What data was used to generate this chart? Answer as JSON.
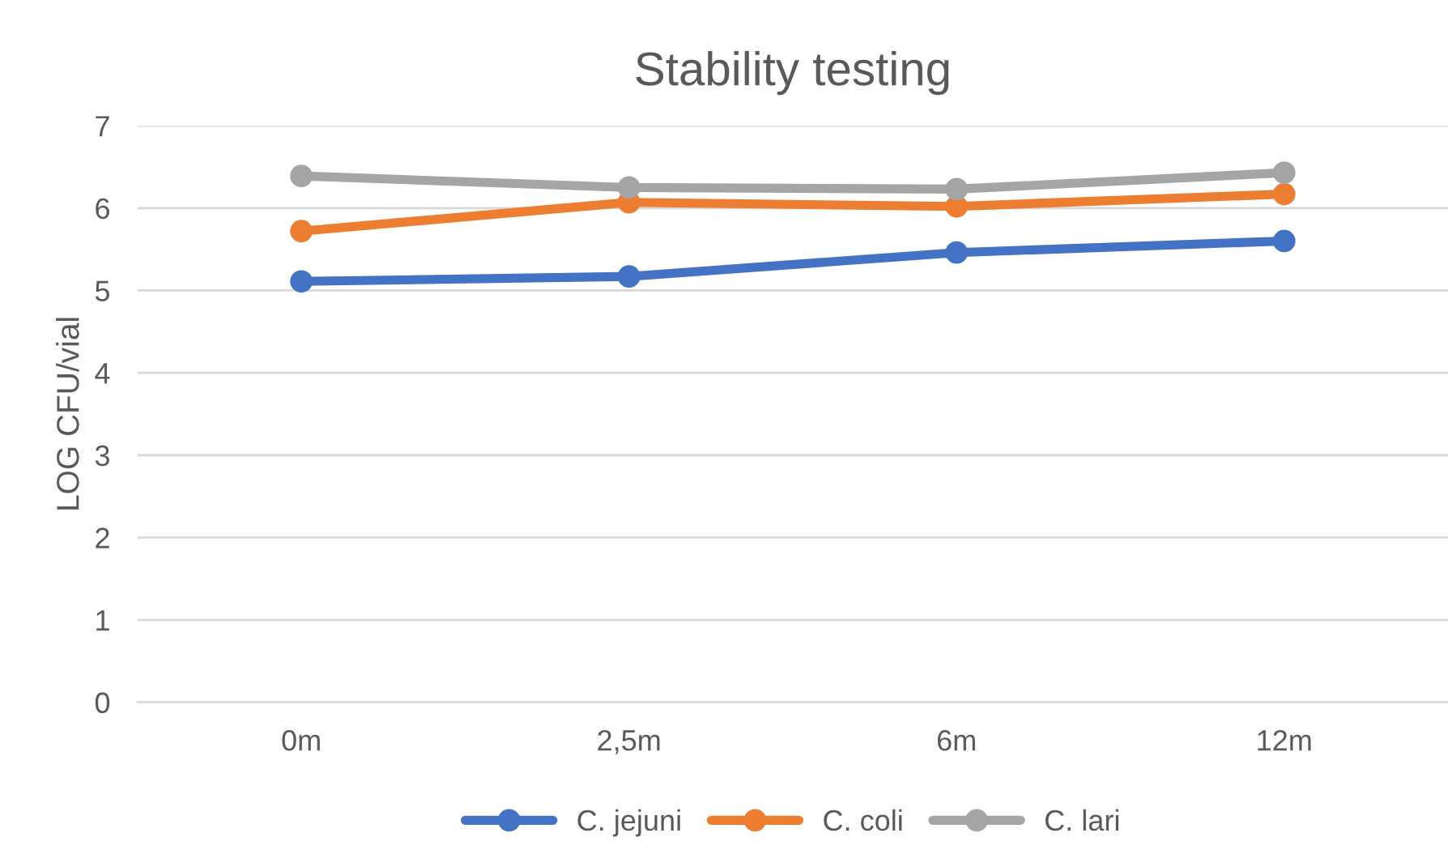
{
  "chart_data": {
    "type": "line",
    "title": "Stability testing",
    "ylabel": "LOG CFU/vial",
    "categories": [
      "0m",
      "2,5m",
      "6m",
      "12m"
    ],
    "series": [
      {
        "name": "C. jejuni",
        "color": "#4472c4",
        "values": [
          5.11,
          5.17,
          5.46,
          5.6
        ]
      },
      {
        "name": "C. coli",
        "color": "#ed7d31",
        "values": [
          5.72,
          6.07,
          6.02,
          6.17
        ]
      },
      {
        "name": "C. lari",
        "color": "#a5a5a5",
        "values": [
          6.39,
          6.25,
          6.23,
          6.43
        ]
      }
    ],
    "ylim": [
      0,
      7
    ],
    "yticks": [
      0,
      1,
      2,
      3,
      4,
      5,
      6,
      7
    ],
    "grid": "y",
    "legend": "bottom",
    "marker": "circle",
    "line_style": "solid"
  }
}
